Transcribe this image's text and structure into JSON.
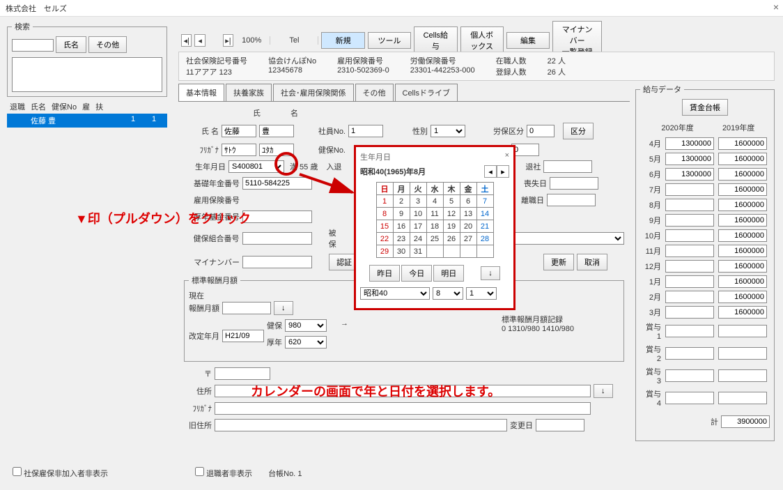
{
  "app_title": "株式会社　セルズ",
  "toolbar": {
    "zoom": "100%",
    "tel_label": "Tel",
    "new_btn": "新規",
    "tool_btn": "ツール",
    "cells_salary_btn": "Cells給与",
    "personal_box_btn": "個人ボックス",
    "edit_btn": "編集",
    "mynumber_btn": "マイナンバー\n一覧登録"
  },
  "search": {
    "legend": "検索",
    "name_btn": "氏名",
    "other_btn": "その他"
  },
  "list": {
    "headers": {
      "taishoku": "退職",
      "shimei": "氏名",
      "kenpo": "健保No",
      "yatoi": "雇",
      "fu": "扶"
    },
    "row": {
      "name": "佐藤 豊",
      "col1": "1",
      "col2": "1"
    }
  },
  "info": {
    "shakai_label": "社会保険記号番号",
    "shakai_val": "11アアア 123",
    "kyokai_label": "協会けんぽNo",
    "kyokai_val": "12345678",
    "koyo_label": "雇用保険番号",
    "koyo_val": "2310-502369-0",
    "roudou_label": "労働保険番号",
    "roudou_val": "23301-442253-000",
    "zaishoku_label": "在職人数",
    "zaishoku_val": "22  人",
    "touroku_label": "登録人数",
    "touroku_val": "26  人"
  },
  "tabs": {
    "t1": "基本情報",
    "t2": "扶養家族",
    "t3": "社会･雇用保険関係",
    "t4": "その他",
    "t5": "Cellsドライブ"
  },
  "form": {
    "shi_label": "氏",
    "mei_label": "名",
    "shimei_label": "氏 名",
    "shi_val": "佐藤",
    "mei_val": "豊",
    "furigana_label": "ﾌﾘｶﾞﾅ",
    "furi_shi": "ｻﾄｳ",
    "furi_mei": "ﾕﾀｶ",
    "shain_label": "社員No.",
    "shain_val": "1",
    "kenpo_label": "健保No.",
    "seibetsu_label": "性別",
    "seibetsu_val": "1",
    "roudou_kubun_label": "労保区分",
    "roudou_kubun_val": "0",
    "kubun_btn": "区分",
    "kubun2_val": "0",
    "birth_label": "生年月日",
    "birth_val": "S400801",
    "birth_age": "満 55 歳",
    "nyutai_label": "入退",
    "taisha_label": "退社",
    "kiso_nenkin_label": "基礎年金番号",
    "kiso_nenkin_val": "5110-584225",
    "soushitsu_label": "喪失日",
    "koyohoken_label": "雇用保険番号",
    "rishoku_label": "離職日",
    "kounen_label": "厚年基金番号",
    "kenpokumiai_label": "健保組合番号",
    "hihou_label": "被保",
    "mynumber_label": "マイナンバー",
    "ninsho_btn": "認証",
    "koushin_btn": "更新",
    "torikeshi_btn": "取消",
    "hyoujun_legend": "標準報酬月額",
    "genzai_label": "現在",
    "houshuu_label": "報酬月額",
    "kaitei_label": "改定年月",
    "kaitei_val": "H21/09",
    "kenpo2_label": "健保",
    "kenpo2_val": "980",
    "kounen2_label": "厚年",
    "kounen2_val": "620",
    "kiroku_label": "標準報酬月額記録",
    "kiroku_val": "0  1310/980 1410/980",
    "post_label": "〒",
    "addr_label": "住所",
    "furi2_label": "ﾌﾘｶﾞﾅ",
    "old_addr_label": "旧住所",
    "henkou_label": "変更日"
  },
  "bottom": {
    "check1": "社保雇保非加入者非表示",
    "check2": "退職者非表示",
    "daicho_label": "台帳No.",
    "daicho_val": "1"
  },
  "popup": {
    "title": "生年月日",
    "heading": "昭和40(1965)年8月",
    "days": {
      "sun": "日",
      "mon": "月",
      "tue": "火",
      "wed": "水",
      "thu": "木",
      "fri": "金",
      "sat": "土"
    },
    "yesterday": "昨日",
    "today": "今日",
    "tomorrow": "明日",
    "era_val": "昭和40",
    "month_val": "8",
    "day_val": "1"
  },
  "salary": {
    "legend": "給与データ",
    "daicho_btn": "賃金台帳",
    "year1": "2020年度",
    "year2": "2019年度",
    "months": [
      "4月",
      "5月",
      "6月",
      "7月",
      "8月",
      "9月",
      "10月",
      "11月",
      "12月",
      "1月",
      "2月",
      "3月"
    ],
    "bonus": [
      "賞与1",
      "賞与2",
      "賞与3",
      "賞与4"
    ],
    "vals2020": [
      "1300000",
      "1300000",
      "1300000",
      "",
      "",
      "",
      "",
      "",
      "",
      "",
      "",
      ""
    ],
    "vals2019": [
      "1600000",
      "1600000",
      "1600000",
      "1600000",
      "1600000",
      "1600000",
      "1600000",
      "1600000",
      "1600000",
      "1600000",
      "1600000",
      "1600000"
    ],
    "total_label": "計",
    "total_val": "3900000"
  },
  "annotations": {
    "a1": "▼印（プルダウン）をクリック",
    "a2": "カレンダーの画面で年と日付を選択します。"
  }
}
